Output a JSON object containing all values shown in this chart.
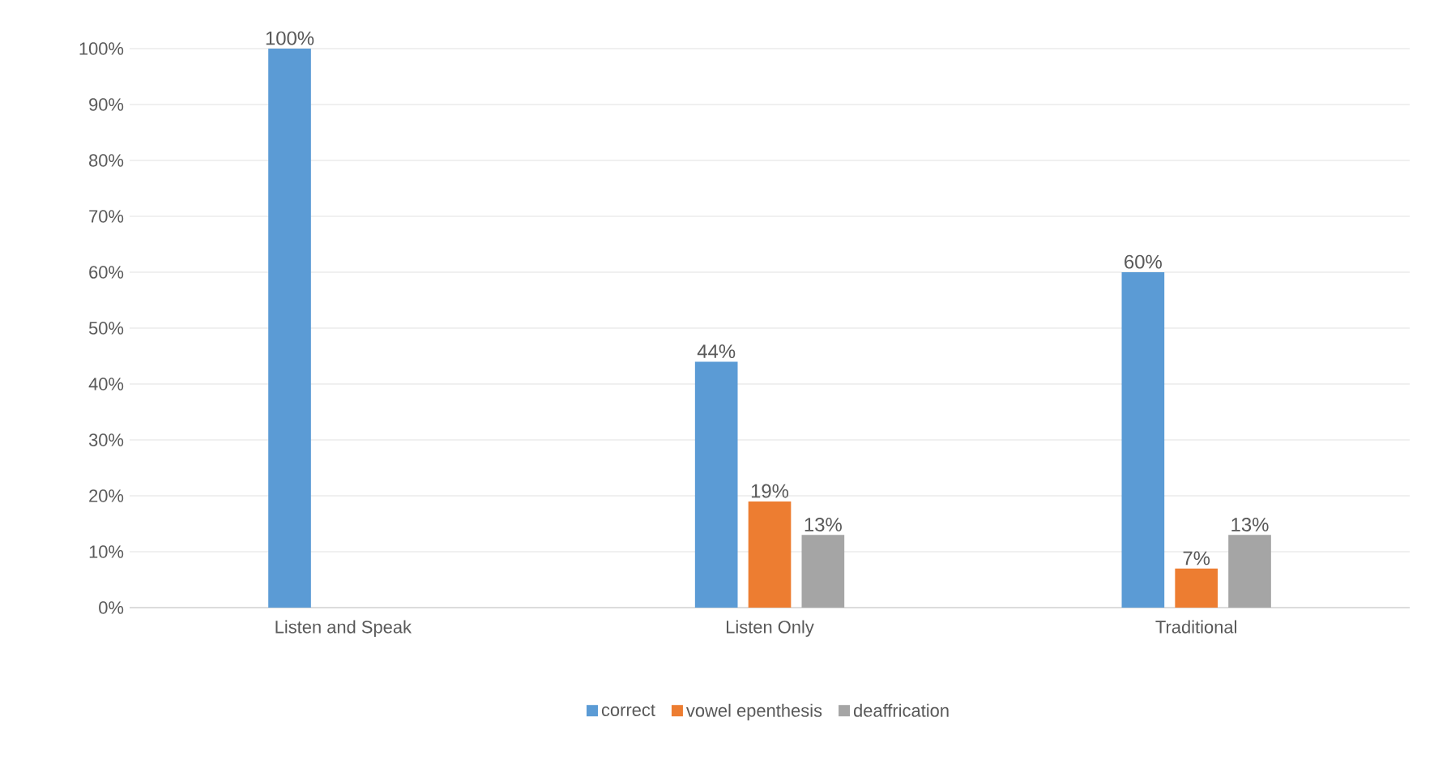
{
  "chart_data": {
    "type": "bar",
    "categories": [
      "Listen and Speak",
      "Listen Only",
      "Traditional"
    ],
    "series": [
      {
        "name": "correct",
        "color": "#5b9bd5",
        "values": [
          100,
          44,
          60
        ],
        "value_labels": [
          "100%",
          "44%",
          "60%"
        ]
      },
      {
        "name": "vowel epenthesis",
        "color": "#ed7d31",
        "values": [
          null,
          19,
          7
        ],
        "value_labels": [
          null,
          "19%",
          "7%"
        ]
      },
      {
        "name": "deaffrication",
        "color": "#a5a5a5",
        "values": [
          null,
          13,
          13
        ],
        "value_labels": [
          null,
          "13%",
          "13%"
        ]
      }
    ],
    "ylim": [
      0,
      100
    ],
    "yticks": [
      {
        "value": 0,
        "label": "0%"
      },
      {
        "value": 10,
        "label": "10%"
      },
      {
        "value": 20,
        "label": "20%"
      },
      {
        "value": 30,
        "label": "30%"
      },
      {
        "value": 40,
        "label": "40%"
      },
      {
        "value": 50,
        "label": "50%"
      },
      {
        "value": 60,
        "label": "60%"
      },
      {
        "value": 70,
        "label": "70%"
      },
      {
        "value": 80,
        "label": "80%"
      },
      {
        "value": 90,
        "label": "90%"
      },
      {
        "value": 100,
        "label": "100%"
      }
    ],
    "grid": "y",
    "legend": "bottom"
  }
}
